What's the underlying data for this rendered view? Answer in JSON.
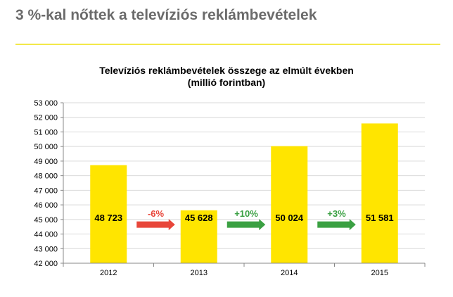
{
  "slide": {
    "title": "3 %-kal nőttek a televíziós reklámbevételek"
  },
  "colors": {
    "bar": "#ffe500",
    "decrease_arrow": "#e8463a",
    "increase_arrow": "#3aa042",
    "grid": "#d9d9d9"
  },
  "chart_data": {
    "type": "bar",
    "title": "Televíziós reklámbevételek összege az elmúlt években",
    "subtitle": "(millió forintban)",
    "categories": [
      "2012",
      "2013",
      "2014",
      "2015"
    ],
    "values": [
      48723,
      45628,
      50024,
      51581
    ],
    "value_labels": [
      "48 723",
      "45 628",
      "50 024",
      "51 581"
    ],
    "ylim": [
      42000,
      53000
    ],
    "yticks": [
      42000,
      43000,
      44000,
      45000,
      46000,
      47000,
      48000,
      49000,
      50000,
      51000,
      52000,
      53000
    ],
    "ytick_labels": [
      "42 000",
      "43 000",
      "44 000",
      "45 000",
      "46 000",
      "47 000",
      "48 000",
      "49 000",
      "50 000",
      "51 000",
      "52 000",
      "53 000"
    ],
    "grid": true,
    "annotations": [
      {
        "text": "-6%",
        "from": "2012",
        "to": "2013",
        "direction": "decrease"
      },
      {
        "text": "+10%",
        "from": "2013",
        "to": "2014",
        "direction": "increase"
      },
      {
        "text": "+3%",
        "from": "2014",
        "to": "2015",
        "direction": "increase"
      }
    ]
  }
}
